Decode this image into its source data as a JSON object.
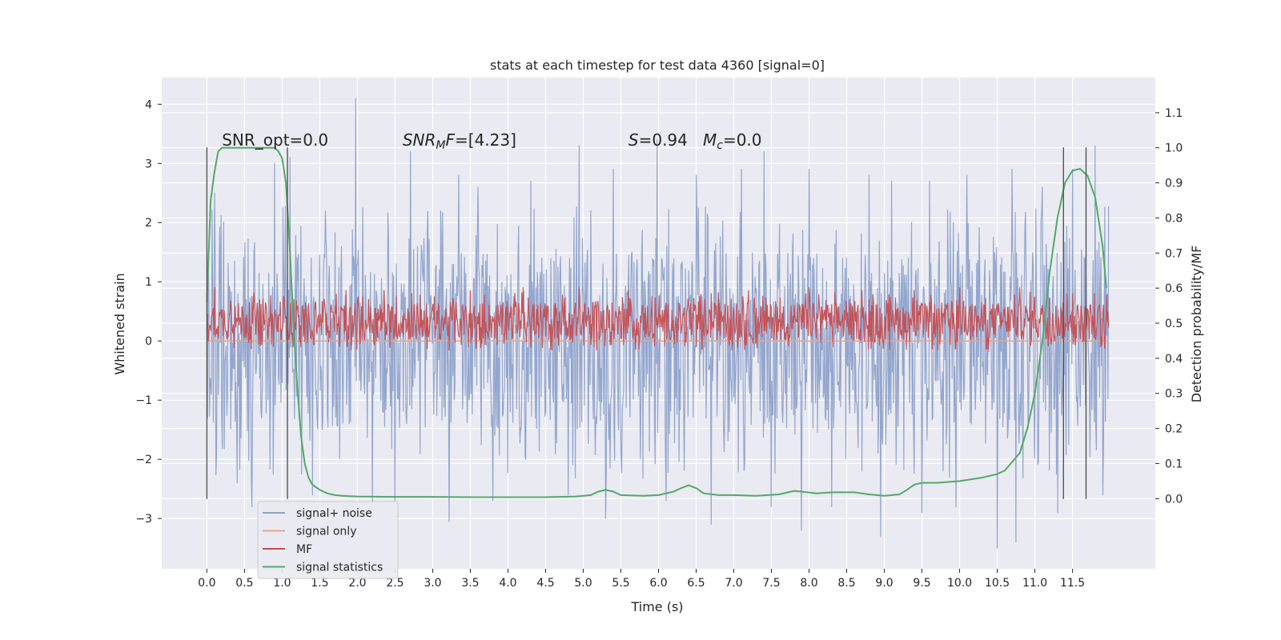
{
  "chart_data": {
    "type": "line",
    "title": "stats at each timestep for test data 4360 [signal=0]",
    "xlabel": "Time (s)",
    "ylabel": "Whitened strain",
    "ylabel_right": "Detection probability/MF",
    "xlim": [
      -0.6,
      12.6
    ],
    "ylim": [
      -3.85,
      4.45
    ],
    "ylim_right": [
      -0.2,
      1.2
    ],
    "x_ticks": [
      0.0,
      0.5,
      1.0,
      1.5,
      2.0,
      2.5,
      3.0,
      3.5,
      4.0,
      4.5,
      5.0,
      5.5,
      6.0,
      6.5,
      7.0,
      7.5,
      8.0,
      8.5,
      9.0,
      9.5,
      10.0,
      10.5,
      11.0,
      11.5
    ],
    "x_tick_labels": [
      "0.0",
      "0.5",
      "1.0",
      "1.5",
      "2.0",
      "2.5",
      "3.0",
      "3.5",
      "4.0",
      "4.5",
      "5.0",
      "5.5",
      "6.0",
      "6.5",
      "7.0",
      "7.5",
      "8.0",
      "8.5",
      "9.0",
      "9.5",
      "10.0",
      "10.5",
      "11.0",
      "11.5"
    ],
    "y_ticks": [
      -3,
      -2,
      -1,
      0,
      1,
      2,
      3,
      4
    ],
    "y_tick_labels": [
      "−3",
      "−2",
      "−1",
      "0",
      "1",
      "2",
      "3",
      "4"
    ],
    "y_ticks_right": [
      0.0,
      0.1,
      0.2,
      0.3,
      0.4,
      0.5,
      0.6,
      0.7,
      0.8,
      0.9,
      1.0,
      1.1
    ],
    "y_tick_labels_right": [
      "0.0",
      "0.1",
      "0.2",
      "0.3",
      "0.4",
      "0.5",
      "0.6",
      "0.7",
      "0.8",
      "0.9",
      "1.0",
      "1.1"
    ],
    "grid": true,
    "legend_position": "lower-left",
    "annotations": [
      {
        "text": "SNR_opt=0.0",
        "x": 0.2,
        "y": 3.3
      },
      {
        "text": "SNR_MF=[4.23]",
        "x": 2.6,
        "y": 3.3
      },
      {
        "text": "S=0.94   M_c=0.0",
        "x": 5.6,
        "y": 3.3
      }
    ],
    "vertical_lines": [
      0.0,
      1.07,
      11.38,
      11.68
    ],
    "vertical_line_range": [
      -2.67,
      3.27
    ],
    "series": [
      {
        "name": "signal+ noise",
        "axis": "left",
        "color": "#8ea2cb",
        "style": "noise",
        "x_range": [
          0.0,
          11.98
        ],
        "band": [
          -1.5,
          1.5
        ],
        "peaks_up": [
          [
            0.1,
            2.5
          ],
          [
            0.4,
            2.7
          ],
          [
            0.9,
            3.0
          ],
          [
            1.1,
            3.1
          ],
          [
            1.98,
            4.1
          ],
          [
            2.7,
            3.2
          ],
          [
            3.35,
            2.8
          ],
          [
            3.6,
            2.6
          ],
          [
            4.3,
            2.7
          ],
          [
            4.95,
            3.3
          ],
          [
            5.4,
            2.9
          ],
          [
            5.98,
            3.4
          ],
          [
            6.5,
            2.8
          ],
          [
            7.1,
            2.9
          ],
          [
            7.4,
            3.2
          ],
          [
            8.0,
            2.9
          ],
          [
            8.8,
            2.8
          ],
          [
            9.1,
            2.7
          ],
          [
            9.6,
            2.7
          ],
          [
            10.1,
            2.8
          ],
          [
            10.7,
            2.9
          ],
          [
            11.1,
            2.6
          ],
          [
            11.5,
            2.9
          ],
          [
            11.8,
            3.3
          ]
        ],
        "peaks_down": [
          [
            0.4,
            -2.4
          ],
          [
            0.6,
            -2.8
          ],
          [
            1.4,
            -2.6
          ],
          [
            2.2,
            -2.8
          ],
          [
            2.5,
            -2.7
          ],
          [
            3.22,
            -3.05
          ],
          [
            3.8,
            -2.7
          ],
          [
            4.8,
            -2.6
          ],
          [
            5.3,
            -3.0
          ],
          [
            6.1,
            -2.7
          ],
          [
            6.7,
            -3.1
          ],
          [
            7.5,
            -2.8
          ],
          [
            7.9,
            -3.2
          ],
          [
            8.3,
            -2.8
          ],
          [
            8.95,
            -3.3
          ],
          [
            9.5,
            -2.9
          ],
          [
            9.95,
            -2.8
          ],
          [
            10.5,
            -3.5
          ],
          [
            10.75,
            -3.4
          ],
          [
            11.3,
            -2.9
          ],
          [
            11.9,
            -2.6
          ]
        ]
      },
      {
        "name": "signal only",
        "axis": "left",
        "color": "#e8a58a",
        "style": "flat",
        "x": [
          0.0,
          11.98
        ],
        "y": [
          0.0,
          0.0
        ]
      },
      {
        "name": "MF",
        "axis": "left",
        "color": "#c44e52",
        "style": "noise",
        "x_range": [
          0.0,
          11.98
        ],
        "band": [
          0.02,
          0.65
        ],
        "peaks_up": [
          [
            0.1,
            0.9
          ],
          [
            0.6,
            0.75
          ],
          [
            1.85,
            0.85
          ],
          [
            2.35,
            0.85
          ],
          [
            3.5,
            0.85
          ],
          [
            4.2,
            0.9
          ],
          [
            4.95,
            0.9
          ],
          [
            5.6,
            0.85
          ],
          [
            6.7,
            0.8
          ],
          [
            7.2,
            0.85
          ],
          [
            8.0,
            0.9
          ],
          [
            8.7,
            0.85
          ],
          [
            9.4,
            0.85
          ],
          [
            10.0,
            0.9
          ],
          [
            10.8,
            0.9
          ],
          [
            11.5,
            0.8
          ]
        ],
        "peaks_down": []
      },
      {
        "name": "signal statistics",
        "axis": "right",
        "color": "#55a868",
        "style": "curve",
        "x": [
          0.0,
          0.05,
          0.1,
          0.15,
          0.2,
          0.3,
          0.4,
          0.5,
          0.6,
          0.7,
          0.8,
          0.9,
          0.95,
          1.0,
          1.05,
          1.1,
          1.15,
          1.2,
          1.25,
          1.3,
          1.35,
          1.4,
          1.5,
          1.6,
          1.7,
          1.8,
          1.9,
          2.0,
          2.5,
          3.0,
          3.5,
          4.0,
          4.5,
          4.9,
          5.1,
          5.2,
          5.3,
          5.4,
          5.5,
          5.8,
          6.0,
          6.2,
          6.3,
          6.4,
          6.5,
          6.6,
          6.8,
          7.0,
          7.3,
          7.6,
          7.8,
          7.9,
          8.1,
          8.3,
          8.6,
          8.8,
          9.0,
          9.2,
          9.3,
          9.4,
          9.5,
          9.7,
          10.0,
          10.3,
          10.5,
          10.6,
          10.8,
          10.9,
          11.0,
          11.1,
          11.2,
          11.3,
          11.4,
          11.5,
          11.6,
          11.7,
          11.8,
          11.9,
          11.95
        ],
        "y": [
          0.56,
          0.85,
          0.93,
          0.99,
          1.0,
          1.0,
          1.0,
          1.0,
          1.0,
          1.0,
          1.0,
          1.0,
          0.99,
          0.97,
          0.9,
          0.72,
          0.5,
          0.32,
          0.18,
          0.1,
          0.06,
          0.04,
          0.025,
          0.015,
          0.01,
          0.008,
          0.007,
          0.006,
          0.005,
          0.005,
          0.004,
          0.004,
          0.004,
          0.006,
          0.01,
          0.02,
          0.025,
          0.02,
          0.01,
          0.008,
          0.01,
          0.02,
          0.03,
          0.038,
          0.03,
          0.015,
          0.01,
          0.01,
          0.008,
          0.012,
          0.022,
          0.02,
          0.015,
          0.018,
          0.018,
          0.012,
          0.008,
          0.012,
          0.025,
          0.04,
          0.045,
          0.045,
          0.05,
          0.06,
          0.07,
          0.08,
          0.13,
          0.2,
          0.3,
          0.45,
          0.65,
          0.8,
          0.9,
          0.935,
          0.94,
          0.92,
          0.86,
          0.72,
          0.6
        ]
      }
    ]
  }
}
